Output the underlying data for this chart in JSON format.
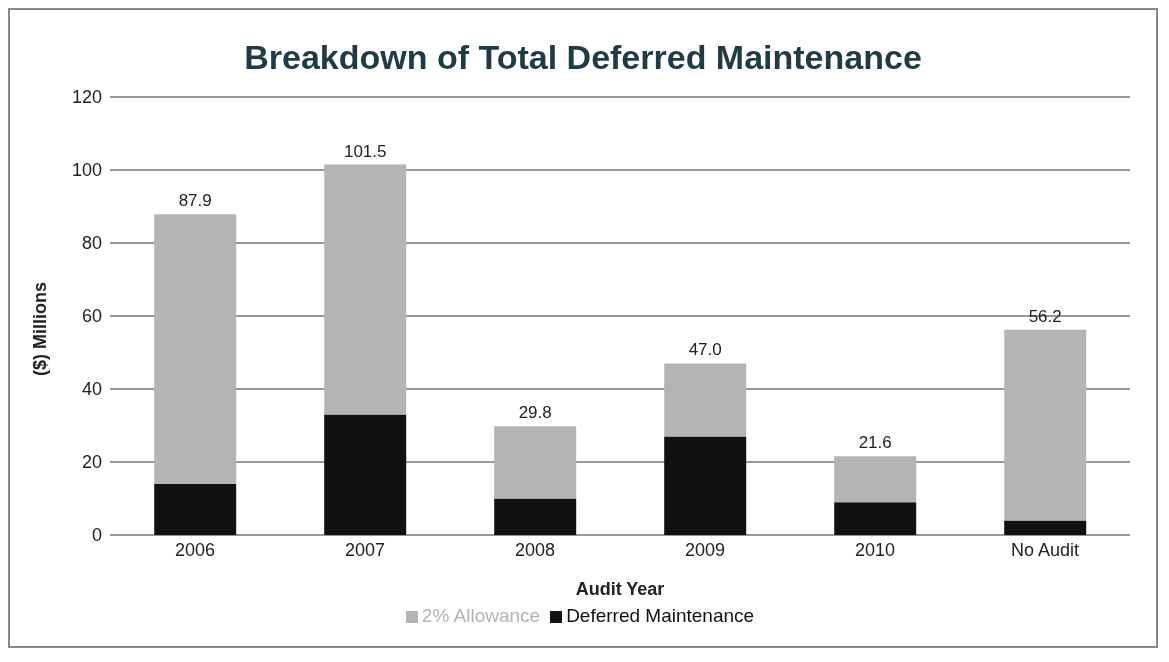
{
  "chart_data": {
    "type": "bar",
    "title": "Breakdown of Total Deferred Maintenance",
    "xlabel": "Audit Year",
    "ylabel": "($) Millions",
    "categories": [
      "2006",
      "2007",
      "2008",
      "2009",
      "2010",
      "No Audit"
    ],
    "series": [
      {
        "name": "Deferred Maintenance",
        "color": "#111111",
        "values": [
          14,
          33,
          10,
          27,
          9,
          4
        ]
      },
      {
        "name": "2% Allowance",
        "color": "#b4b4b4",
        "values": [
          73.9,
          68.5,
          19.8,
          20.0,
          12.6,
          52.2
        ]
      }
    ],
    "stacked": true,
    "totals": [
      "87.9",
      "101.5",
      "29.8",
      "47.0",
      "21.6",
      "56.2"
    ],
    "ylim": [
      0,
      120
    ],
    "yticks": [
      0,
      20,
      40,
      60,
      80,
      100,
      120
    ],
    "grid": "y",
    "legend": "bottom"
  }
}
